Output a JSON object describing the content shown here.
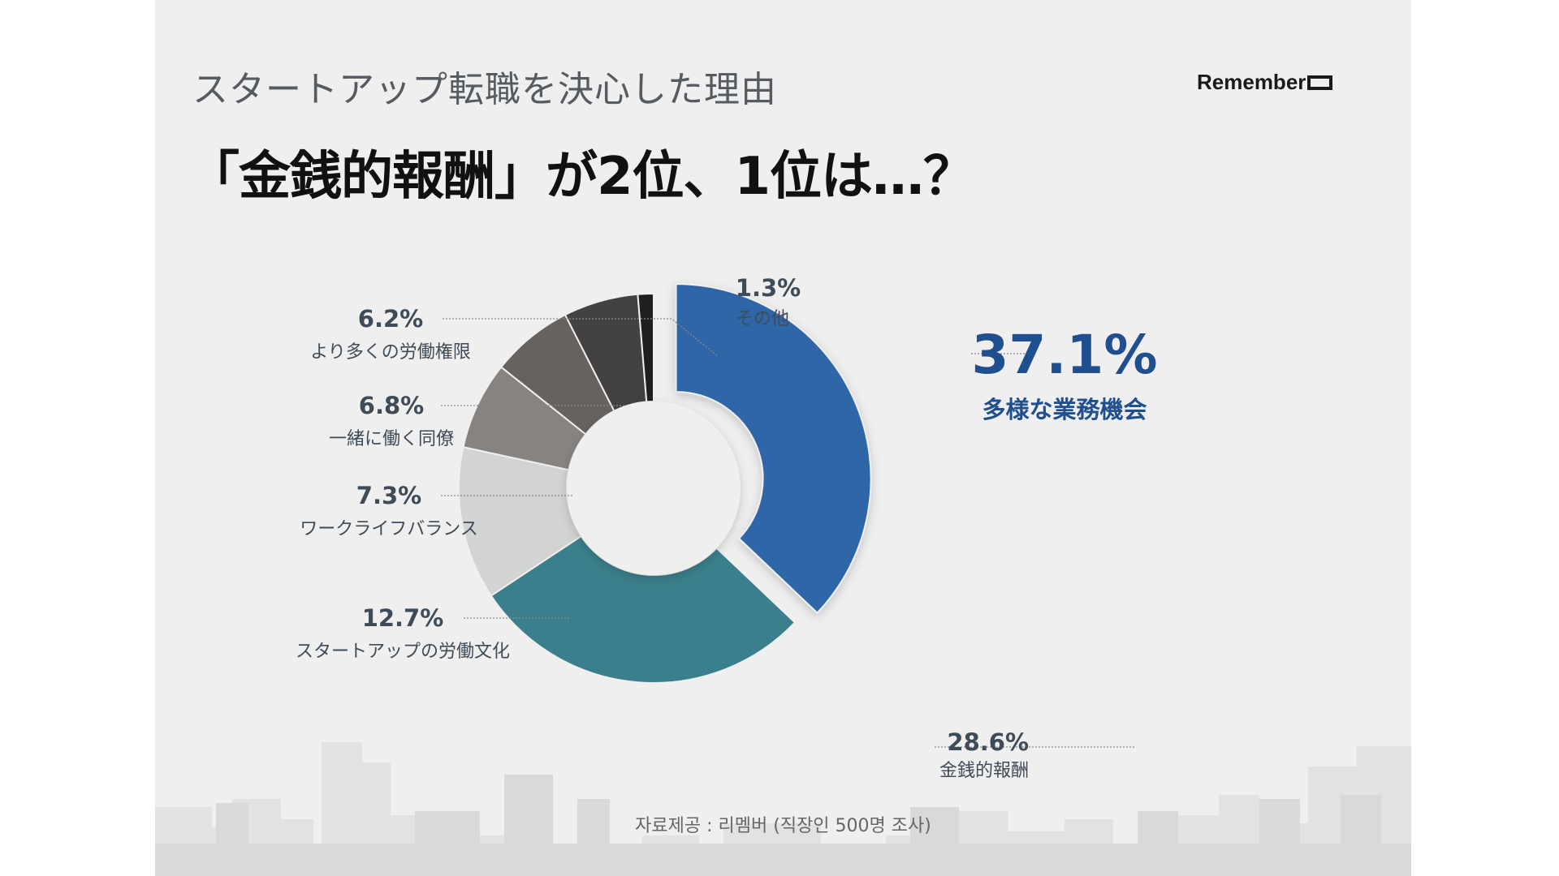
{
  "header": {
    "subtitle": "スタートアップ転職を決心した理由",
    "headline": "「金銭的報酬」が2位、1位は…？",
    "brand": "Remember"
  },
  "footer": {
    "source": "자료제공 : 리멤버 (직장인 500명 조사)"
  },
  "chart_data": {
    "type": "donut",
    "unit": "%",
    "slices": [
      {
        "label": "多様な業務機会",
        "value": 37.1,
        "value_label": "37.1%",
        "color": "#2e66a8",
        "exploded": true,
        "label_color": "#1f4f8f"
      },
      {
        "label": "金銭的報酬",
        "value": 28.6,
        "value_label": "28.6%",
        "color": "#3b7f8c",
        "label_color": "#3f4b57"
      },
      {
        "label": "スタートアップの労働文化",
        "value": 12.7,
        "value_label": "12.7%",
        "color": "#d2d4d4",
        "label_color": "#3f4b57"
      },
      {
        "label": "ワークライフバランス",
        "value": 7.3,
        "value_label": "7.3%",
        "color": "#878380",
        "label_color": "#3f4b57"
      },
      {
        "label": "一緒に働く同僚",
        "value": 6.8,
        "value_label": "6.8%",
        "color": "#67625f",
        "label_color": "#3f4b57"
      },
      {
        "label": "より多くの労働権限",
        "value": 6.2,
        "value_label": "6.2%",
        "color": "#444241",
        "label_color": "#3f4b57"
      },
      {
        "label": "その他",
        "value": 1.3,
        "value_label": "1.3%",
        "color": "#1f1f1f",
        "label_color": "#3f4b57"
      }
    ]
  }
}
